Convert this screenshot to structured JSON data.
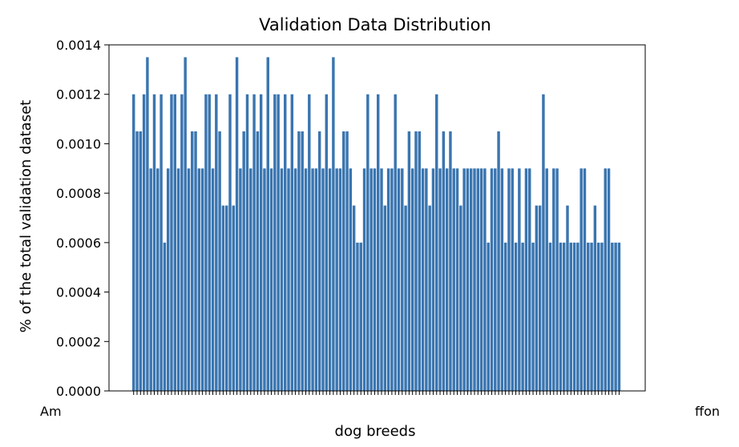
{
  "chart_data": {
    "type": "bar",
    "title": "Validation Data Distribution",
    "xlabel": "dog breeds",
    "ylabel": "% of the total validation dataset",
    "ylim": [
      0,
      0.0014
    ],
    "yticks": [
      0,
      0.0002,
      0.0004,
      0.0006,
      0.0008,
      0.001,
      0.0012,
      0.0014
    ],
    "ytick_labels": [
      "0.0000",
      "0.0002",
      "0.0004",
      "0.0006",
      "0.0008",
      "0.0010",
      "0.0012",
      "0.0014"
    ],
    "bar_color": "#3a75b0",
    "first_category_fragment": "Am",
    "last_category_fragment": "ffon",
    "values": [
      0.0012,
      0.00105,
      0.00105,
      0.0012,
      0.00135,
      0.0009,
      0.0012,
      0.0009,
      0.0012,
      0.0006,
      0.0009,
      0.0012,
      0.0012,
      0.0009,
      0.0012,
      0.00135,
      0.0009,
      0.00105,
      0.00105,
      0.0009,
      0.0009,
      0.0012,
      0.0012,
      0.0009,
      0.0012,
      0.00105,
      0.00075,
      0.00075,
      0.0012,
      0.00075,
      0.00135,
      0.0009,
      0.00105,
      0.0012,
      0.0009,
      0.0012,
      0.00105,
      0.0012,
      0.0009,
      0.00135,
      0.0009,
      0.0012,
      0.0012,
      0.0009,
      0.0012,
      0.0009,
      0.0012,
      0.0009,
      0.00105,
      0.00105,
      0.0009,
      0.0012,
      0.0009,
      0.0009,
      0.00105,
      0.0009,
      0.0012,
      0.0009,
      0.00135,
      0.0009,
      0.0009,
      0.00105,
      0.00105,
      0.0009,
      0.00075,
      0.0006,
      0.0006,
      0.0009,
      0.0012,
      0.0009,
      0.0009,
      0.0012,
      0.0009,
      0.00075,
      0.0009,
      0.0009,
      0.0012,
      0.0009,
      0.0009,
      0.00075,
      0.00105,
      0.0009,
      0.00105,
      0.00105,
      0.0009,
      0.0009,
      0.00075,
      0.0009,
      0.0012,
      0.0009,
      0.00105,
      0.0009,
      0.00105,
      0.0009,
      0.0009,
      0.00075,
      0.0009,
      0.0009,
      0.0009,
      0.0009,
      0.0009,
      0.0009,
      0.0009,
      0.0006,
      0.0009,
      0.0009,
      0.00105,
      0.0009,
      0.0006,
      0.0009,
      0.0009,
      0.0006,
      0.0009,
      0.0006,
      0.0009,
      0.0009,
      0.0006,
      0.00075,
      0.00075,
      0.0012,
      0.0009,
      0.0006,
      0.0009,
      0.0009,
      0.0006,
      0.0006,
      0.00075,
      0.0006,
      0.0006,
      0.0006,
      0.0009,
      0.0009,
      0.0006,
      0.0006,
      0.00075,
      0.0006,
      0.0006,
      0.0009,
      0.0009,
      0.0006,
      0.0006,
      0.0006
    ]
  }
}
